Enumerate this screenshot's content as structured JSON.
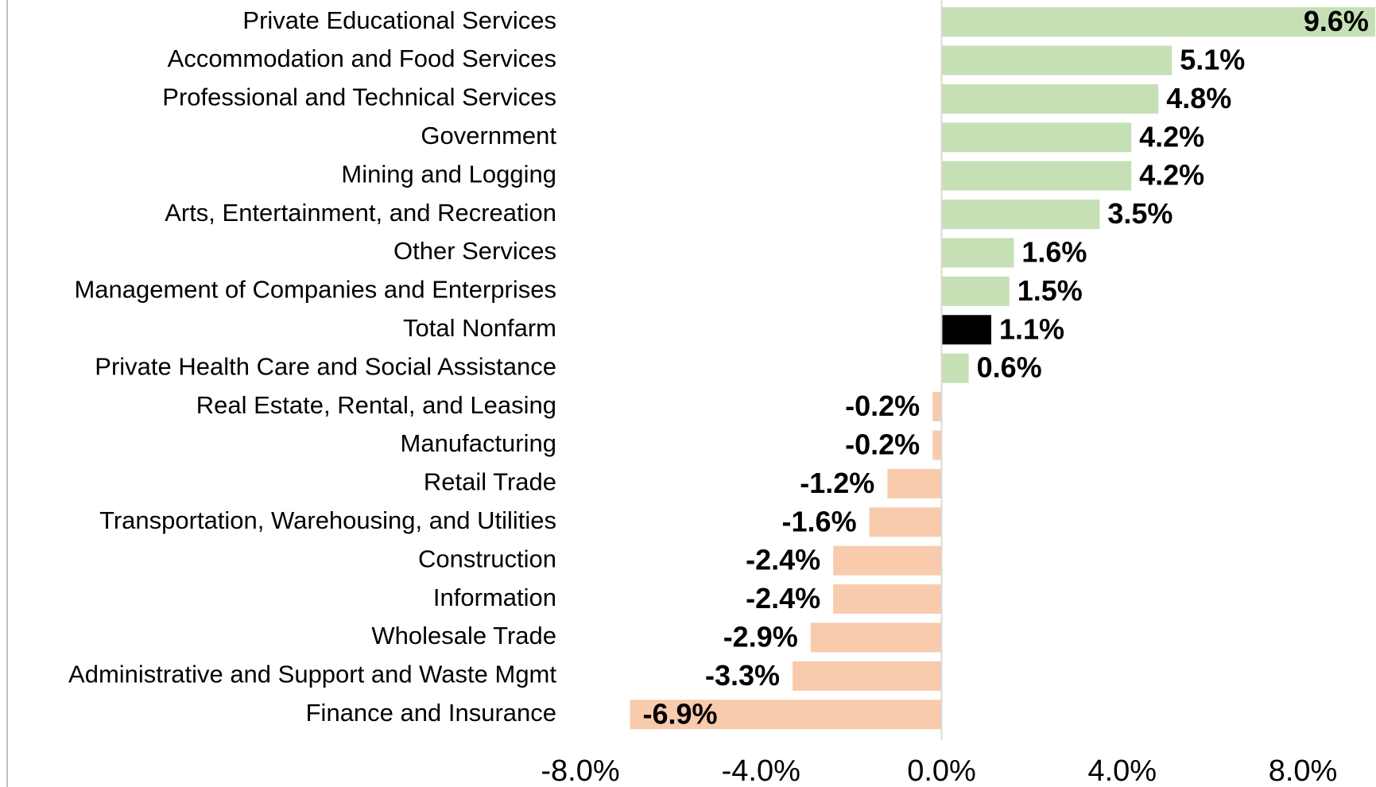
{
  "chart_data": {
    "type": "bar",
    "orientation": "horizontal",
    "categories": [
      "Private Educational Services",
      "Accommodation and Food Services",
      "Professional and Technical Services",
      "Government",
      "Mining and Logging",
      "Arts, Entertainment, and Recreation",
      "Other Services",
      "Management of Companies and Enterprises",
      "Total Nonfarm",
      "Private Health Care and Social Assistance",
      "Real Estate, Rental, and Leasing",
      "Manufacturing",
      "Retail Trade",
      "Transportation, Warehousing, and Utilities",
      "Construction",
      "Information",
      "Wholesale Trade",
      "Administrative and Support and Waste Mgmt",
      "Finance and Insurance"
    ],
    "values": [
      9.6,
      5.1,
      4.8,
      4.2,
      4.2,
      3.5,
      1.6,
      1.5,
      1.1,
      0.6,
      -0.2,
      -0.2,
      -1.2,
      -1.6,
      -2.4,
      -2.4,
      -2.9,
      -3.3,
      -6.9
    ],
    "value_labels": [
      "9.6%",
      "5.1%",
      "4.8%",
      "4.2%",
      "4.2%",
      "3.5%",
      "1.6%",
      "1.5%",
      "1.1%",
      "0.6%",
      "-0.2%",
      "-0.2%",
      "-1.2%",
      "-1.6%",
      "-2.4%",
      "-2.4%",
      "-2.9%",
      "-3.3%",
      "-6.9%"
    ],
    "colors": [
      "#c5e0b4",
      "#c5e0b4",
      "#c5e0b4",
      "#c5e0b4",
      "#c5e0b4",
      "#c5e0b4",
      "#c5e0b4",
      "#c5e0b4",
      "#000000",
      "#c5e0b4",
      "#f8cbad",
      "#f8cbad",
      "#f8cbad",
      "#f8cbad",
      "#f8cbad",
      "#f8cbad",
      "#f8cbad",
      "#f8cbad",
      "#f8cbad"
    ],
    "xlim": [
      -8,
      9.6
    ],
    "xticks": [
      {
        "value": -8,
        "label": "-8.0%"
      },
      {
        "value": -4,
        "label": "-4.0%"
      },
      {
        "value": 0,
        "label": "0.0%"
      },
      {
        "value": 4,
        "label": "4.0%"
      },
      {
        "value": 8,
        "label": "8.0%"
      }
    ],
    "grid": false
  }
}
